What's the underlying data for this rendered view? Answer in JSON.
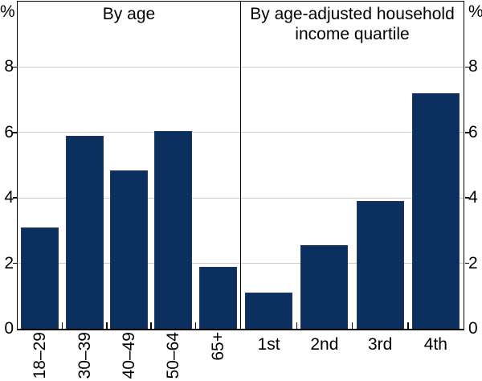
{
  "chart_data": {
    "type": "bar",
    "unit": "%",
    "ylim": [
      0,
      10
    ],
    "yticks": [
      0,
      2,
      4,
      6,
      8
    ],
    "grid": true,
    "legend": "none",
    "bar_color": "#0b3060",
    "gridline_color": "#c9c9c9",
    "panels": [
      {
        "title": "By age",
        "categories": [
          "18–29",
          "30–39",
          "40–49",
          "50–64",
          "65+"
        ],
        "values": [
          3.1,
          5.9,
          4.85,
          6.05,
          1.9
        ],
        "xlabel_rotation": 90
      },
      {
        "title": "By age-adjusted household income quartile",
        "categories": [
          "1st",
          "2nd",
          "3rd",
          "4th"
        ],
        "values": [
          1.1,
          2.55,
          3.9,
          7.2
        ],
        "xlabel_rotation": 0
      }
    ]
  }
}
